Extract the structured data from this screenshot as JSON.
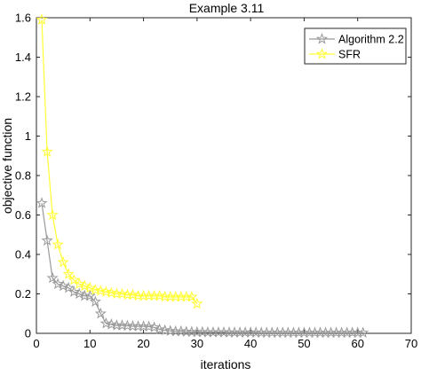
{
  "chart_data": {
    "type": "line",
    "title": "Example 3.11",
    "xlabel": "iterations",
    "ylabel": "objective function",
    "xlim": [
      0,
      70
    ],
    "ylim": [
      0,
      1.6
    ],
    "xticks": [
      0,
      10,
      20,
      30,
      40,
      50,
      60,
      70
    ],
    "yticks": [
      0,
      0.2,
      0.4,
      0.6,
      0.8,
      1,
      1.2,
      1.4,
      1.6
    ],
    "xtick_labels": [
      "0",
      "10",
      "20",
      "30",
      "40",
      "50",
      "60",
      "70"
    ],
    "ytick_labels": [
      "0",
      "0.2",
      "0.4",
      "0.6",
      "0.8",
      "1",
      "1.2",
      "1.4",
      "1.6"
    ],
    "grid": false,
    "legend_position": "top-right",
    "series": [
      {
        "name": "Algorithm 2.2",
        "color": "#999999",
        "marker": "star",
        "x": [
          1,
          2,
          3,
          4,
          5,
          6,
          7,
          8,
          9,
          10,
          11,
          12,
          13,
          14,
          15,
          16,
          17,
          18,
          19,
          20,
          21,
          22,
          23,
          24,
          25,
          26,
          27,
          28,
          29,
          30,
          31,
          32,
          33,
          34,
          35,
          36,
          37,
          38,
          39,
          40,
          41,
          42,
          43,
          44,
          45,
          46,
          47,
          48,
          49,
          50,
          51,
          52,
          53,
          54,
          55,
          56,
          57,
          58,
          59,
          60,
          61
        ],
        "y": [
          0.66,
          0.47,
          0.28,
          0.25,
          0.24,
          0.23,
          0.21,
          0.2,
          0.19,
          0.19,
          0.16,
          0.1,
          0.05,
          0.045,
          0.04,
          0.04,
          0.038,
          0.036,
          0.035,
          0.035,
          0.034,
          0.03,
          0.02,
          0.015,
          0.012,
          0.01,
          0.01,
          0.008,
          0.007,
          0.006,
          0.006,
          0.005,
          0.005,
          0.005,
          0.005,
          0.004,
          0.004,
          0.004,
          0.004,
          0.004,
          0.004,
          0.003,
          0.003,
          0.003,
          0.003,
          0.003,
          0.003,
          0.003,
          0.003,
          0.003,
          0.003,
          0.003,
          0.003,
          0.003,
          0.003,
          0.003,
          0.003,
          0.003,
          0.003,
          0.003,
          0.003
        ]
      },
      {
        "name": "SFR",
        "color": "#ffff33",
        "marker": "star",
        "x": [
          1,
          2,
          3,
          4,
          5,
          6,
          7,
          8,
          9,
          10,
          11,
          12,
          13,
          14,
          15,
          16,
          17,
          18,
          19,
          20,
          21,
          22,
          23,
          24,
          25,
          26,
          27,
          28,
          29,
          30
        ],
        "y": [
          1.59,
          0.92,
          0.6,
          0.45,
          0.36,
          0.3,
          0.27,
          0.25,
          0.24,
          0.23,
          0.22,
          0.215,
          0.21,
          0.205,
          0.2,
          0.2,
          0.195,
          0.195,
          0.19,
          0.19,
          0.19,
          0.19,
          0.19,
          0.185,
          0.185,
          0.185,
          0.185,
          0.185,
          0.185,
          0.15
        ]
      }
    ]
  }
}
